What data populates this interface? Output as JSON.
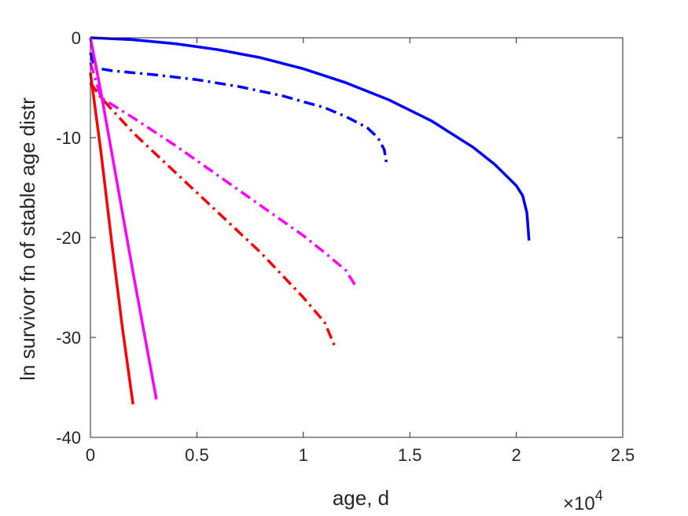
{
  "chart_data": {
    "type": "line",
    "title": "",
    "xlabel": "age, d",
    "ylabel": "ln survivor fn of stable age distr",
    "x_multiplier": "×10",
    "x_multiplier_exp": "4",
    "xlim": [
      0,
      2.5
    ],
    "ylim": [
      -40,
      0
    ],
    "xticks": [
      0,
      0.5,
      1,
      1.5,
      2,
      2.5
    ],
    "xtick_labels": [
      "0",
      "0.5",
      "1",
      "1.5",
      "2",
      "2.5"
    ],
    "yticks": [
      -40,
      -30,
      -20,
      -10,
      0
    ],
    "ytick_labels": [
      "-40",
      "-30",
      "-20",
      "-10",
      "0"
    ],
    "grid": false,
    "series": [
      {
        "color": "#0000ff",
        "style": "solid",
        "x": [
          0,
          0.2,
          0.4,
          0.6,
          0.8,
          1.0,
          1.2,
          1.4,
          1.6,
          1.8,
          1.9,
          2.0,
          2.03,
          2.05,
          2.06
        ],
        "y": [
          0,
          -0.2,
          -0.6,
          -1.2,
          -2.0,
          -3.1,
          -4.5,
          -6.2,
          -8.3,
          -11.0,
          -12.7,
          -14.8,
          -15.8,
          -17.5,
          -20.3
        ]
      },
      {
        "color": "#0000ff",
        "style": "dashdot",
        "x": [
          0,
          0.02,
          0.1,
          0.3,
          0.5,
          0.7,
          0.9,
          1.1,
          1.2,
          1.3,
          1.35,
          1.38,
          1.39
        ],
        "y": [
          -1.5,
          -3.0,
          -3.3,
          -3.7,
          -4.2,
          -4.9,
          -5.8,
          -7.0,
          -7.9,
          -9.0,
          -10.0,
          -11.2,
          -12.5
        ]
      },
      {
        "color": "#ff00ff",
        "style": "dashdot",
        "x": [
          0,
          0.05,
          0.2,
          0.4,
          0.6,
          0.8,
          1.0,
          1.1,
          1.2,
          1.25
        ],
        "y": [
          -2.5,
          -6.0,
          -8.0,
          -10.8,
          -13.8,
          -16.8,
          -19.8,
          -21.5,
          -23.3,
          -25.0
        ]
      },
      {
        "color": "#ff0000",
        "style": "dashdot",
        "x": [
          0,
          0.05,
          0.2,
          0.4,
          0.6,
          0.8,
          1.0,
          1.1,
          1.15
        ],
        "y": [
          -4.5,
          -6.0,
          -9.5,
          -13.5,
          -17.5,
          -21.5,
          -26.0,
          -28.5,
          -31.0
        ]
      },
      {
        "color": "#ff00ff",
        "style": "solid",
        "x": [
          0,
          0.05,
          0.1,
          0.2,
          0.31
        ],
        "y": [
          0,
          -5.5,
          -11.5,
          -23.5,
          -36.2
        ]
      },
      {
        "color": "#ff0000",
        "style": "solid",
        "x": [
          0,
          0.05,
          0.1,
          0.15,
          0.2
        ],
        "y": [
          -3.5,
          -11.5,
          -20.5,
          -29.0,
          -36.7
        ]
      }
    ]
  }
}
